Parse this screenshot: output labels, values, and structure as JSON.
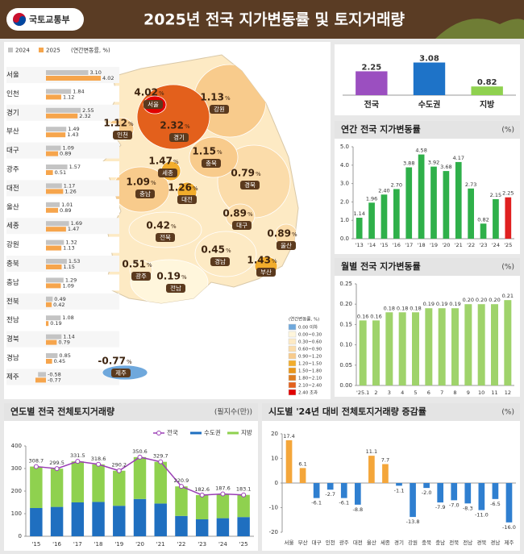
{
  "header": {
    "logo": "국토교통부",
    "title": "2025년 전국 지가변동률 및 토지거래량"
  },
  "chart_data": [
    {
      "type": "hbar",
      "unit_label": "(연간변동률, %)",
      "categories": [
        "서울",
        "인천",
        "경기",
        "부산",
        "대구",
        "광주",
        "대전",
        "울산",
        "세종",
        "강원",
        "충북",
        "충남",
        "전북",
        "전남",
        "경북",
        "경남",
        "제주"
      ],
      "series": [
        {
          "name": "2024",
          "color": "#c4c4c4",
          "values": [
            3.1,
            1.84,
            2.55,
            1.49,
            1.09,
            1.57,
            1.17,
            1.01,
            1.69,
            1.32,
            1.53,
            1.29,
            0.49,
            1.08,
            1.14,
            0.85,
            -0.58
          ],
          "value_labels": [
            "3.10",
            "1.84",
            "2.55",
            "1.49",
            "1.09",
            "1.57",
            "1.17",
            "1.01",
            "1.69",
            "1.32",
            "1.53",
            "1.29",
            "0.49",
            "1.08",
            "1.14",
            "0.85",
            "-0.58"
          ]
        },
        {
          "name": "2025",
          "color": "#f6a54c",
          "values": [
            4.02,
            1.12,
            2.32,
            1.43,
            0.89,
            0.51,
            1.26,
            0.89,
            1.47,
            1.13,
            1.15,
            1.09,
            0.42,
            0.19,
            0.79,
            0.45,
            -0.77
          ],
          "value_labels": [
            "4.02",
            "1.12",
            "2.32",
            "1.43",
            "0.89",
            "0.51",
            "1.26",
            "0.89",
            "1.47",
            "1.13",
            "1.15",
            "1.09",
            "0.42",
            "0.19",
            "0.79",
            "0.45",
            "-0.77"
          ]
        }
      ],
      "xlim": [
        -1,
        4.2
      ]
    },
    {
      "type": "map",
      "unit": "%",
      "legend_title": "(연간변동률, %)",
      "regions": [
        "서울",
        "인천",
        "경기",
        "강원",
        "충북",
        "세종",
        "충남",
        "대전",
        "경북",
        "대구",
        "전북",
        "경남",
        "울산",
        "부산",
        "광주",
        "전남",
        "제주"
      ],
      "values": [
        4.02,
        1.12,
        2.32,
        1.13,
        1.15,
        1.47,
        1.09,
        1.26,
        0.79,
        0.89,
        0.42,
        0.45,
        0.89,
        1.43,
        0.51,
        0.19,
        -0.77
      ],
      "value_labels": [
        "4.02",
        "1.12",
        "2.32",
        "1.13",
        "1.15",
        "1.47",
        "1.09",
        "1.26",
        "0.79",
        "0.89",
        "0.42",
        "0.45",
        "0.89",
        "1.43",
        "0.51",
        "0.19",
        "-0.77"
      ],
      "legend": {
        "labels": [
          "0.00 이하",
          "0.00~0.30",
          "0.30~0.60",
          "0.60~0.90",
          "0.90~1.20",
          "1.20~1.50",
          "1.50~1.80",
          "1.80~2.10",
          "2.10~2.40",
          "2.40 초과"
        ],
        "colors": [
          "#6fa8dc",
          "#fff6dc",
          "#fdeac4",
          "#fbdcaa",
          "#f8cb8c",
          "#f2ad2c",
          "#e9961a",
          "#de7d20",
          "#e3601c",
          "#e00000"
        ],
        "bins": [
          0,
          0.3,
          0.6,
          0.9,
          1.2,
          1.5,
          1.8,
          2.1,
          2.4
        ]
      }
    },
    {
      "type": "bar",
      "categories": [
        "전국",
        "수도권",
        "지방"
      ],
      "values": [
        2.25,
        3.08,
        0.82
      ],
      "value_labels": [
        "2.25",
        "3.08",
        "0.82"
      ],
      "colors": [
        "#9b4fc0",
        "#1e73c8",
        "#8fd14f"
      ],
      "ylim": [
        0,
        3.5
      ]
    },
    {
      "type": "bar",
      "title": "연간 전국 지가변동률",
      "unit": "(%)",
      "categories": [
        "'13",
        "'14",
        "'15",
        "'16",
        "'17",
        "'18",
        "'19",
        "'20",
        "'21",
        "'22",
        "'23",
        "'24",
        "'25"
      ],
      "values": [
        1.14,
        1.96,
        2.4,
        2.7,
        3.88,
        4.58,
        3.92,
        3.68,
        4.17,
        2.73,
        0.82,
        2.15,
        2.25
      ],
      "value_labels": [
        "1.14",
        "1.96",
        "2.40",
        "2.70",
        "3.88",
        "4.58",
        "3.92",
        "3.68",
        "4.17",
        "2.73",
        "0.82",
        "2.15",
        "2.25"
      ],
      "colors": [
        "#2fb04a",
        "#2fb04a",
        "#2fb04a",
        "#2fb04a",
        "#2fb04a",
        "#2fb04a",
        "#2fb04a",
        "#2fb04a",
        "#2fb04a",
        "#2fb04a",
        "#2fb04a",
        "#2fb04a",
        "#e02020"
      ],
      "ylim": [
        0,
        5
      ],
      "yticks": [
        {
          "value": 0,
          "label": "0.0"
        },
        {
          "value": 1,
          "label": "1.0"
        },
        {
          "value": 2,
          "label": "2.0"
        },
        {
          "value": 3,
          "label": "3.0"
        },
        {
          "value": 4,
          "label": "4.0"
        },
        {
          "value": 5,
          "label": "5.0"
        }
      ]
    },
    {
      "type": "bar",
      "title": "월별 전국 지가변동률",
      "unit": "(%)",
      "categories": [
        "'25.1",
        "2",
        "3",
        "4",
        "5",
        "6",
        "7",
        "8",
        "9",
        "10",
        "11",
        "12"
      ],
      "values": [
        0.16,
        0.16,
        0.18,
        0.18,
        0.18,
        0.19,
        0.19,
        0.19,
        0.2,
        0.2,
        0.2,
        0.21
      ],
      "value_labels": [
        "0.16",
        "0.16",
        "0.18",
        "0.18",
        "0.18",
        "0.19",
        "0.19",
        "0.19",
        "0.20",
        "0.20",
        "0.20",
        "0.21"
      ],
      "color": "#9fd36b",
      "ylim": [
        0,
        0.25
      ],
      "yticks": [
        {
          "value": 0,
          "label": "0.00"
        },
        {
          "value": 0.05,
          "label": "0.05"
        },
        {
          "value": 0.1,
          "label": "0.10"
        },
        {
          "value": 0.15,
          "label": "0.15"
        },
        {
          "value": 0.2,
          "label": "0.20"
        },
        {
          "value": 0.25,
          "label": "0.25"
        }
      ]
    },
    {
      "type": "combo",
      "title": "연도별 전국 전체토지거래량",
      "unit": "(필지수(만))",
      "categories": [
        "'15",
        "'16",
        "'17",
        "'18",
        "'19",
        "'20",
        "'21",
        "'22",
        "'23",
        "'24",
        "'25"
      ],
      "series": [
        {
          "name": "전국",
          "type": "line",
          "color": "#9b3fb5",
          "values": [
            308.7,
            299.5,
            331.5,
            318.6,
            290.2,
            350.6,
            329.7,
            220.9,
            182.6,
            187.6,
            183.1
          ]
        },
        {
          "name": "수도권",
          "type": "bar",
          "color": "#1f6fc0",
          "values": [
            125,
            130,
            150,
            152,
            135,
            165,
            145,
            90,
            75,
            80,
            85
          ]
        },
        {
          "name": "지방",
          "type": "bar",
          "color": "#8fd14f",
          "values": [
            183.7,
            169.5,
            181.5,
            166.6,
            155.2,
            185.6,
            184.7,
            130.9,
            107.6,
            107.6,
            98.1
          ]
        }
      ],
      "ylim": [
        0,
        400
      ],
      "yticks": [
        0,
        100,
        200,
        300,
        400
      ]
    },
    {
      "type": "bar",
      "title": "시도별 '24년 대비 전체토지거래량 증감률",
      "unit": "(%)",
      "categories": [
        "서울",
        "부산",
        "대구",
        "인천",
        "광주",
        "대전",
        "울산",
        "세종",
        "경기",
        "강원",
        "충북",
        "충남",
        "전북",
        "전남",
        "경북",
        "경남",
        "제주"
      ],
      "values": [
        17.4,
        6.1,
        -6.1,
        -2.7,
        -6.1,
        -8.8,
        11.1,
        7.7,
        -1.1,
        -13.8,
        -2.0,
        -7.9,
        -7.0,
        -8.3,
        -11.0,
        -6.5,
        -16.0
      ],
      "value_labels": [
        "17.4",
        "6.1",
        "-6.1",
        "-2.7",
        "-6.1",
        "-8.8",
        "11.1",
        "7.7",
        "-1.1",
        "-13.8",
        "-2.0",
        "-7.9",
        "-7.0",
        "-8.3",
        "-11.0",
        "-6.5",
        "-16.0"
      ],
      "positive_color": "#f4a63a",
      "negative_color": "#2f7fd0",
      "ylim": [
        -20,
        20
      ],
      "yticks": [
        -20,
        -10,
        0,
        10,
        20
      ]
    }
  ]
}
